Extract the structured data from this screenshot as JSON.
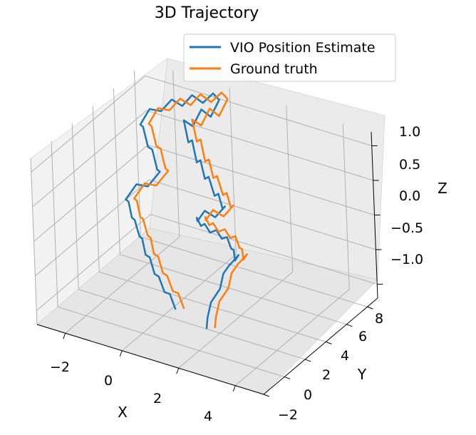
{
  "chart_data": {
    "type": "line",
    "projection": "3d",
    "title": "3D Trajectory",
    "xlabel": "X",
    "ylabel": "Y",
    "zlabel": "Z",
    "x_ticks": [
      "−2",
      "0",
      "2",
      "4"
    ],
    "y_ticks": [
      "−2",
      "0",
      "2",
      "4",
      "6",
      "8"
    ],
    "z_ticks": [
      "1.0",
      "0.5",
      "0.0",
      "−0.5",
      "−1.0"
    ],
    "xlim": [
      -3,
      5
    ],
    "ylim": [
      -2,
      9
    ],
    "zlim": [
      -1.2,
      1.2
    ],
    "grid": true,
    "legend_position": "top-right",
    "series": [
      {
        "name": "VIO Position Estimate",
        "color": "#1f77b4",
        "points": [
          [
            3.05,
            -2.0,
            -0.5
          ],
          [
            2.95,
            -1.6,
            -0.4
          ],
          [
            2.9,
            -1.1,
            -0.25
          ],
          [
            3.05,
            -0.6,
            -0.1
          ],
          [
            3.0,
            -0.1,
            0.05
          ],
          [
            3.1,
            0.3,
            0.15
          ],
          [
            3.0,
            0.6,
            0.1
          ],
          [
            3.15,
            1.0,
            0.2
          ],
          [
            2.9,
            1.3,
            0.05
          ],
          [
            2.75,
            1.6,
            0.15
          ],
          [
            2.55,
            1.9,
            0.1
          ],
          [
            2.3,
            2.2,
            0.2
          ],
          [
            2.0,
            2.5,
            0.1
          ],
          [
            1.7,
            2.8,
            0.15
          ],
          [
            1.4,
            3.0,
            0.05
          ],
          [
            1.1,
            3.3,
            0.1
          ],
          [
            0.85,
            3.6,
            0.0
          ],
          [
            0.6,
            3.9,
            0.05
          ],
          [
            0.5,
            4.2,
            -0.05
          ],
          [
            0.7,
            4.4,
            0.1
          ],
          [
            0.95,
            4.7,
            0.0
          ],
          [
            1.2,
            5.0,
            0.15
          ],
          [
            1.0,
            5.3,
            0.05
          ],
          [
            0.75,
            5.6,
            0.2
          ],
          [
            0.5,
            5.9,
            0.1
          ],
          [
            0.2,
            6.2,
            0.3
          ],
          [
            -0.05,
            6.5,
            0.2
          ],
          [
            -0.3,
            6.8,
            0.4
          ],
          [
            -0.55,
            7.1,
            0.3
          ],
          [
            -0.8,
            7.4,
            0.55
          ],
          [
            -1.05,
            7.7,
            0.45
          ],
          [
            -1.3,
            8.0,
            0.7
          ],
          [
            -1.1,
            8.3,
            0.6
          ],
          [
            -0.85,
            8.5,
            0.85
          ],
          [
            -0.6,
            8.7,
            0.75
          ],
          [
            -0.35,
            8.9,
            1.0
          ],
          [
            -0.6,
            9.0,
            1.05
          ],
          [
            -0.9,
            8.8,
            0.9
          ],
          [
            -1.2,
            8.6,
            1.0
          ],
          [
            -1.45,
            8.3,
            0.85
          ],
          [
            -1.7,
            8.0,
            0.95
          ],
          [
            -1.95,
            7.6,
            0.8
          ],
          [
            -2.2,
            7.2,
            0.85
          ],
          [
            -2.4,
            6.8,
            0.65
          ],
          [
            -2.15,
            6.4,
            0.7
          ],
          [
            -1.85,
            6.0,
            0.5
          ],
          [
            -1.55,
            5.6,
            0.55
          ],
          [
            -1.25,
            5.2,
            0.35
          ],
          [
            -1.0,
            4.8,
            0.4
          ],
          [
            -1.3,
            4.4,
            0.2
          ],
          [
            -1.55,
            4.0,
            0.25
          ],
          [
            -1.8,
            3.6,
            0.05
          ],
          [
            -1.55,
            3.2,
            0.1
          ],
          [
            -1.3,
            2.8,
            -0.05
          ],
          [
            -1.05,
            2.4,
            0.0
          ],
          [
            -0.75,
            2.0,
            -0.15
          ],
          [
            -0.5,
            1.6,
            -0.1
          ],
          [
            -0.25,
            1.2,
            -0.25
          ],
          [
            0.05,
            0.8,
            -0.2
          ],
          [
            0.35,
            0.4,
            -0.35
          ],
          [
            0.65,
            0.0,
            -0.3
          ],
          [
            0.95,
            -0.3,
            -0.45
          ],
          [
            1.25,
            -0.6,
            -0.4
          ],
          [
            1.55,
            -0.9,
            -0.55
          ]
        ]
      },
      {
        "name": "Ground truth",
        "color": "#ff7f0e",
        "points": [
          [
            3.35,
            -2.0,
            -0.45
          ],
          [
            3.25,
            -1.6,
            -0.35
          ],
          [
            3.2,
            -1.1,
            -0.2
          ],
          [
            3.35,
            -0.6,
            -0.05
          ],
          [
            3.3,
            -0.1,
            0.1
          ],
          [
            3.4,
            0.3,
            0.2
          ],
          [
            3.3,
            0.6,
            0.15
          ],
          [
            3.45,
            1.0,
            0.25
          ],
          [
            3.2,
            1.3,
            0.1
          ],
          [
            3.05,
            1.6,
            0.2
          ],
          [
            2.85,
            1.9,
            0.15
          ],
          [
            2.6,
            2.2,
            0.25
          ],
          [
            2.3,
            2.5,
            0.15
          ],
          [
            2.0,
            2.8,
            0.2
          ],
          [
            1.7,
            3.0,
            0.1
          ],
          [
            1.4,
            3.3,
            0.15
          ],
          [
            1.15,
            3.6,
            0.05
          ],
          [
            0.9,
            3.9,
            0.1
          ],
          [
            0.8,
            4.2,
            0.0
          ],
          [
            1.0,
            4.4,
            0.15
          ],
          [
            1.25,
            4.7,
            0.05
          ],
          [
            1.5,
            5.0,
            0.2
          ],
          [
            1.3,
            5.3,
            0.1
          ],
          [
            1.05,
            5.6,
            0.25
          ],
          [
            0.8,
            5.9,
            0.15
          ],
          [
            0.5,
            6.2,
            0.35
          ],
          [
            0.25,
            6.5,
            0.25
          ],
          [
            0.0,
            6.8,
            0.45
          ],
          [
            -0.25,
            7.1,
            0.35
          ],
          [
            -0.5,
            7.4,
            0.6
          ],
          [
            -0.75,
            7.7,
            0.5
          ],
          [
            -1.0,
            8.0,
            0.75
          ],
          [
            -0.8,
            8.3,
            0.65
          ],
          [
            -0.55,
            8.5,
            0.9
          ],
          [
            -0.3,
            8.7,
            0.8
          ],
          [
            -0.05,
            8.9,
            1.05
          ],
          [
            -0.3,
            9.0,
            1.1
          ],
          [
            -0.6,
            8.8,
            0.95
          ],
          [
            -0.9,
            8.6,
            1.05
          ],
          [
            -1.15,
            8.3,
            0.9
          ],
          [
            -1.4,
            8.0,
            1.0
          ],
          [
            -1.65,
            7.6,
            0.85
          ],
          [
            -1.9,
            7.2,
            0.9
          ],
          [
            -2.1,
            6.8,
            0.7
          ],
          [
            -1.85,
            6.4,
            0.75
          ],
          [
            -1.55,
            6.0,
            0.55
          ],
          [
            -1.25,
            5.6,
            0.6
          ],
          [
            -0.95,
            5.2,
            0.4
          ],
          [
            -0.7,
            4.8,
            0.45
          ],
          [
            -1.0,
            4.4,
            0.25
          ],
          [
            -1.25,
            4.0,
            0.3
          ],
          [
            -1.5,
            3.6,
            0.1
          ],
          [
            -1.25,
            3.2,
            0.15
          ],
          [
            -1.0,
            2.8,
            0.0
          ],
          [
            -0.75,
            2.4,
            0.05
          ],
          [
            -0.45,
            2.0,
            -0.1
          ],
          [
            -0.2,
            1.6,
            -0.05
          ],
          [
            0.05,
            1.2,
            -0.2
          ],
          [
            0.35,
            0.8,
            -0.15
          ],
          [
            0.65,
            0.4,
            -0.3
          ],
          [
            0.95,
            0.0,
            -0.25
          ],
          [
            1.25,
            -0.3,
            -0.4
          ],
          [
            1.55,
            -0.6,
            -0.35
          ],
          [
            1.85,
            -0.9,
            -0.5
          ]
        ]
      }
    ]
  }
}
